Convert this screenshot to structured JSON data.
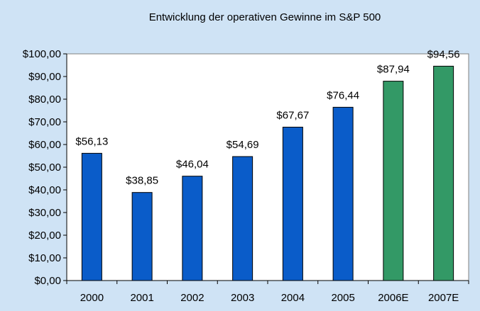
{
  "chart_data": {
    "type": "bar",
    "title": "Entwicklung der operativen Gewinne im S&P 500",
    "xlabel": "",
    "ylabel": "",
    "categories": [
      "2000",
      "2001",
      "2002",
      "2003",
      "2004",
      "2005",
      "2006E",
      "2007E"
    ],
    "values": [
      56.13,
      38.85,
      46.04,
      54.69,
      67.67,
      76.44,
      87.94,
      94.56
    ],
    "data_labels": [
      "$56,13",
      "$38,85",
      "$46,04",
      "$54,69",
      "$67,67",
      "$76,44",
      "$87,94",
      "$94,56"
    ],
    "bar_colors": [
      "#0a5cc9",
      "#0a5cc9",
      "#0a5cc9",
      "#0a5cc9",
      "#0a5cc9",
      "#0a5cc9",
      "#339966",
      "#339966"
    ],
    "ylim": [
      0,
      100
    ],
    "y_ticks": [
      0,
      10,
      20,
      30,
      40,
      50,
      60,
      70,
      80,
      90,
      100
    ],
    "y_tick_labels": [
      "$0,00",
      "$10,00",
      "$20,00",
      "$30,00",
      "$40,00",
      "$50,00",
      "$60,00",
      "$70,00",
      "$80,00",
      "$90,00",
      "$100,00"
    ],
    "grid": false,
    "legend": "none"
  },
  "colors": {
    "background": "#cfe3f5",
    "plot_area": "#ffffff",
    "actual": "#0a5cc9",
    "estimate": "#339966"
  }
}
